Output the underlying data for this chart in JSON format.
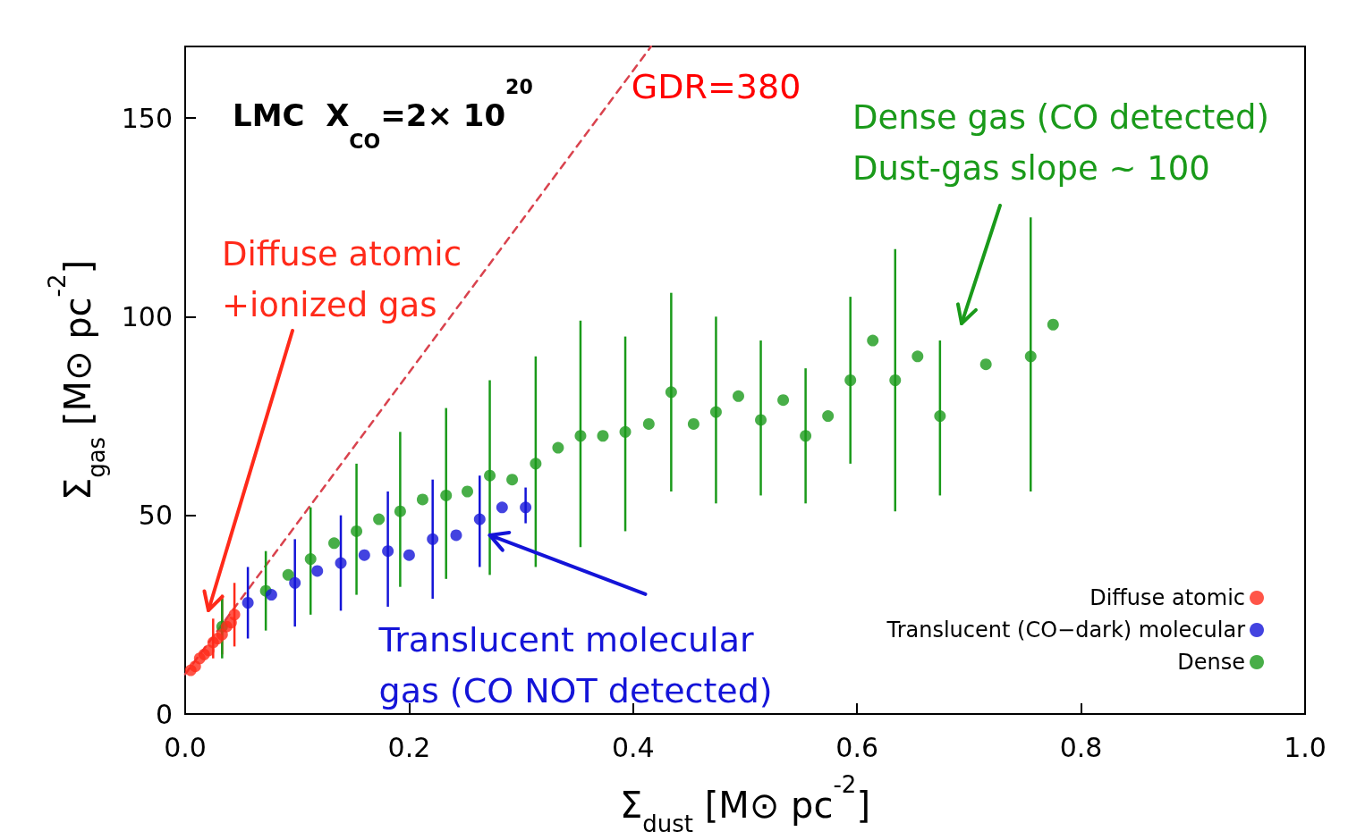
{
  "chart_data": {
    "type": "scatter",
    "xlabel": "Σ$_{dust}$ [M⊙ pc$^{-2}$]",
    "ylabel": "Σ$_{gas}$ [M⊙ pc$^{-2}$]",
    "xlim": [
      0,
      1.0
    ],
    "ylim": [
      0,
      168
    ],
    "xticks": [
      {
        "value": 0,
        "label": "0.0"
      },
      {
        "value": 0.2,
        "label": "0.2"
      },
      {
        "value": 0.4,
        "label": "0.4"
      },
      {
        "value": 0.6,
        "label": "0.6"
      },
      {
        "value": 0.8,
        "label": "0.8"
      },
      {
        "value": 1.0,
        "label": "1.0"
      }
    ],
    "yticks": [
      0,
      50,
      100,
      150
    ],
    "legend": "bottom right",
    "marker": "circle",
    "series": [
      {
        "name": "Diffuse atomic",
        "color": "#ff2a1a",
        "x": [
          0.005,
          0.009,
          0.013,
          0.017,
          0.021,
          0.025,
          0.029,
          0.033,
          0.037,
          0.041,
          0.044
        ],
        "values": [
          11,
          12,
          14,
          15,
          16,
          18,
          19,
          20,
          22,
          23,
          25
        ],
        "errors": [
          null,
          null,
          null,
          null,
          null,
          [
            14,
            24
          ],
          null,
          [
            15,
            30
          ],
          null,
          null,
          [
            17,
            33
          ]
        ]
      },
      {
        "name": "Translucent (CO−dark) molecular",
        "color": "#1414d8",
        "x": [
          0.056,
          0.077,
          0.098,
          0.118,
          0.139,
          0.16,
          0.181,
          0.2,
          0.221,
          0.242,
          0.263,
          0.283,
          0.304
        ],
        "values": [
          28,
          30,
          33,
          36,
          38,
          40,
          41,
          40,
          44,
          45,
          49,
          52,
          52
        ],
        "errors": [
          [
            19,
            37
          ],
          null,
          [
            22,
            44
          ],
          null,
          [
            26,
            50
          ],
          null,
          [
            27,
            56
          ],
          null,
          [
            29,
            59
          ],
          null,
          [
            37,
            60
          ],
          null,
          [
            48,
            57
          ]
        ]
      },
      {
        "name": "Dense",
        "color": "#1a9a1a",
        "x": [
          0.033,
          0.072,
          0.092,
          0.112,
          0.133,
          0.153,
          0.173,
          0.192,
          0.212,
          0.233,
          0.252,
          0.272,
          0.292,
          0.313,
          0.333,
          0.353,
          0.373,
          0.393,
          0.414,
          0.434,
          0.454,
          0.474,
          0.494,
          0.514,
          0.534,
          0.554,
          0.574,
          0.594,
          0.614,
          0.634,
          0.654,
          0.674,
          0.715,
          0.755,
          0.775
        ],
        "values": [
          22,
          31,
          35,
          39,
          43,
          46,
          49,
          51,
          54,
          55,
          56,
          60,
          59,
          63,
          67,
          70,
          70,
          71,
          73,
          81,
          73,
          76,
          80,
          74,
          79,
          70,
          75,
          84,
          94,
          84,
          90,
          75,
          88,
          90,
          98
        ],
        "errors": [
          [
            14,
            29
          ],
          [
            21,
            41
          ],
          null,
          [
            25,
            52
          ],
          null,
          [
            30,
            63
          ],
          null,
          [
            32,
            71
          ],
          null,
          [
            34,
            77
          ],
          null,
          [
            35,
            84
          ],
          null,
          [
            37,
            90
          ],
          null,
          [
            42,
            99
          ],
          null,
          [
            46,
            95
          ],
          null,
          [
            56,
            106
          ],
          null,
          [
            53,
            100
          ],
          null,
          [
            55,
            94
          ],
          null,
          [
            53,
            87
          ],
          null,
          [
            63,
            105
          ],
          null,
          [
            51,
            117
          ],
          null,
          [
            55,
            94
          ],
          null,
          [
            56,
            125
          ],
          null
        ]
      },
      {
        "name": "GDR=380",
        "type": "line",
        "color": "#d9434e",
        "line_style": "dashed",
        "marker": "none",
        "x": [
          0,
          0.416
        ],
        "values": [
          10,
          168
        ]
      }
    ],
    "annotations": [
      "LMC  X$_{CO}$=2× 10$^{20}$",
      "Diffuse atomic\n+ionized gas",
      {
        "text": "Translucent molecular\ngas (CO NOT detected)",
        "x": 0.272,
        "y": 45
      },
      "Dense gas (CO detected)\nDust-gas slope ~ 100"
    ]
  }
}
